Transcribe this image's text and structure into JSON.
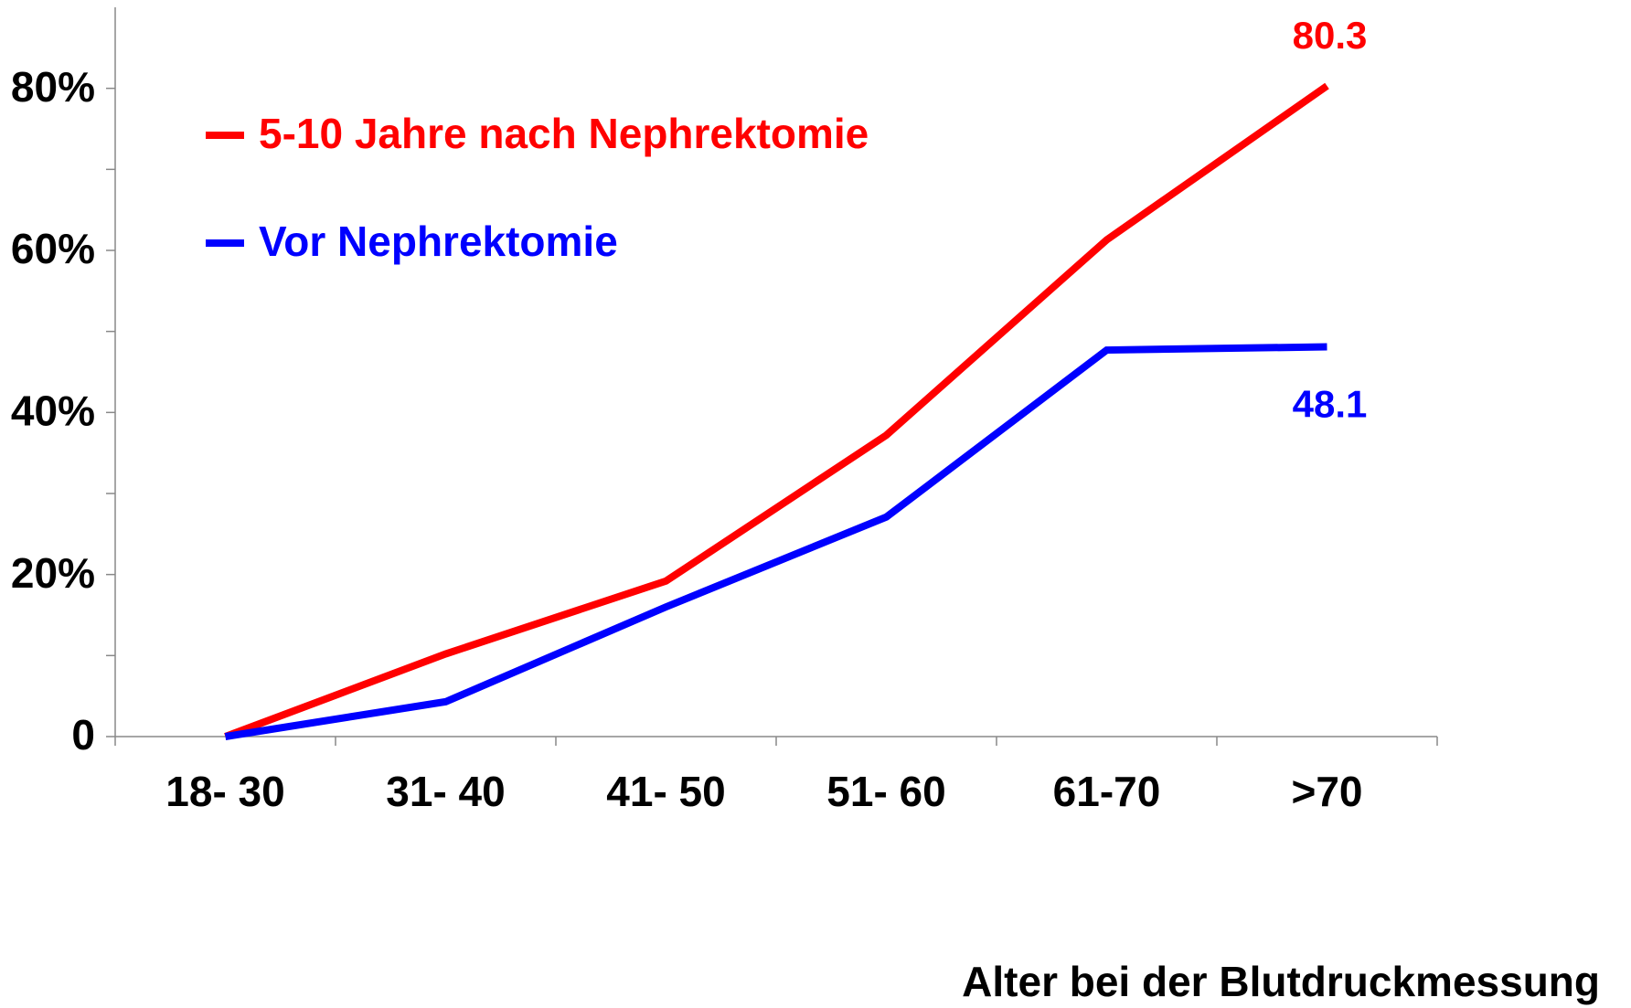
{
  "chart_data": {
    "type": "line",
    "xlabel": "Alter bei der Blutdruckmessung",
    "categories": [
      "18- 30",
      "31- 40",
      "41- 50",
      "51- 60",
      "61-70",
      ">70"
    ],
    "series": [
      {
        "name": "5-10 Jahre nach Nephrektomie",
        "color": "#ff0000",
        "values": [
          0,
          10.2,
          19.2,
          37.2,
          61.3,
          80.3
        ]
      },
      {
        "name": "Vor Nephrektomie",
        "color": "#0000ff",
        "values": [
          0,
          4.3,
          16.0,
          27.1,
          47.7,
          48.1
        ]
      }
    ],
    "ylim": [
      0,
      90
    ],
    "yticks": [
      0,
      {
        "value": 20,
        "label": "20%"
      },
      {
        "value": 40,
        "label": "40%"
      },
      {
        "value": 60,
        "label": "60%"
      },
      {
        "value": 80,
        "label": "80%"
      }
    ],
    "yticks_minor": [
      10,
      30,
      50,
      70
    ],
    "data_labels": "last",
    "legend": "upper-left",
    "grid": false
  }
}
